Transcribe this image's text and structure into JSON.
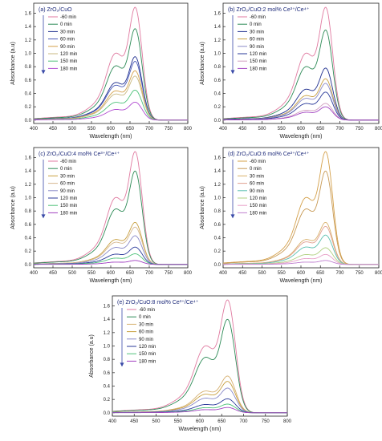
{
  "figure": {
    "wavelength_unit_label": "Wavelength (nm)",
    "absorbance_label": "Absorbance (a.u)"
  },
  "chart_data": [
    {
      "type": "line",
      "panel": "(a)",
      "title": "(a) ZrO₂/CuO",
      "xlabel": "Wavelength (nm)",
      "ylabel": "Absorbance (a.u)",
      "xlim": [
        400,
        800
      ],
      "ylim": [
        -0.05,
        1.75
      ],
      "xticks": [
        400,
        450,
        500,
        550,
        600,
        650,
        700,
        750,
        800
      ],
      "yticks": [
        0.0,
        0.2,
        0.4,
        0.6,
        0.8,
        1.0,
        1.2,
        1.4,
        1.6
      ],
      "legend_placement": "top-left",
      "legend_arrow": "down",
      "peak_wavelength": 663,
      "series": [
        {
          "name": "-60 min",
          "color": "#e07aa0",
          "peak": 1.69
        },
        {
          "name": "0 min",
          "color": "#2e8b57",
          "peak": 1.37
        },
        {
          "name": "30 min",
          "color": "#1f2f8f",
          "peak": 0.95
        },
        {
          "name": "60 min",
          "color": "#4a5ab8",
          "peak": 0.88
        },
        {
          "name": "90 min",
          "color": "#d4a04a",
          "peak": 0.74
        },
        {
          "name": "120 min",
          "color": "#c8b880",
          "peak": 0.66
        },
        {
          "name": "150 min",
          "color": "#4ec27a",
          "peak": 0.45
        },
        {
          "name": "180 min",
          "color": "#b04ad0",
          "peak": 0.27
        }
      ]
    },
    {
      "type": "line",
      "panel": "(b)",
      "title": "(b) ZrO₂/CuO:2 mol% Ce³⁺/Ce⁴⁺",
      "xlabel": "Wavelength (nm)",
      "ylabel": "Absorbance (a.u)",
      "xlim": [
        400,
        800
      ],
      "ylim": [
        -0.05,
        1.75
      ],
      "xticks": [
        400,
        450,
        500,
        550,
        600,
        650,
        700,
        750,
        800
      ],
      "yticks": [
        0.0,
        0.2,
        0.4,
        0.6,
        0.8,
        1.0,
        1.2,
        1.4,
        1.6
      ],
      "legend_placement": "top-left",
      "legend_arrow": "down",
      "peak_wavelength": 663,
      "series": [
        {
          "name": "-60 min",
          "color": "#e07aa0",
          "peak": 1.69
        },
        {
          "name": "0 min",
          "color": "#2e8b57",
          "peak": 1.35
        },
        {
          "name": "30 min",
          "color": "#1f2f8f",
          "peak": 0.78
        },
        {
          "name": "60 min",
          "color": "#c8a040",
          "peak": 0.62
        },
        {
          "name": "90 min",
          "color": "#8a8ac8",
          "peak": 0.55
        },
        {
          "name": "120 min",
          "color": "#2a3a9a",
          "peak": 0.42
        },
        {
          "name": "150 min",
          "color": "#d0a0c0",
          "peak": 0.25
        },
        {
          "name": "180 min",
          "color": "#a040c0",
          "peak": 0.2
        }
      ]
    },
    {
      "type": "line",
      "panel": "(c)",
      "title": "(c) ZrO₂/CuO:4 mol% Ce³⁺/Ce⁴⁺",
      "xlabel": "Wavelength (nm)",
      "ylabel": "Absorbance (a.u)",
      "xlim": [
        400,
        800
      ],
      "ylim": [
        -0.05,
        1.75
      ],
      "xticks": [
        400,
        450,
        500,
        550,
        600,
        650,
        700,
        750,
        800
      ],
      "yticks": [
        0.0,
        0.2,
        0.4,
        0.6,
        0.8,
        1.0,
        1.2,
        1.4,
        1.6
      ],
      "legend_placement": "top-left",
      "legend_arrow": "down",
      "peak_wavelength": 663,
      "series": [
        {
          "name": "-60 min",
          "color": "#e07aa0",
          "peak": 1.69
        },
        {
          "name": "0 min",
          "color": "#2e8b57",
          "peak": 1.4
        },
        {
          "name": "30 min",
          "color": "#c8a040",
          "peak": 0.63
        },
        {
          "name": "60 min",
          "color": "#d6b890",
          "peak": 0.56
        },
        {
          "name": "90 min",
          "color": "#8a8ac8",
          "peak": 0.43
        },
        {
          "name": "120 min",
          "color": "#2a3a9a",
          "peak": 0.26
        },
        {
          "name": "150 min",
          "color": "#4ec27a",
          "peak": 0.16
        },
        {
          "name": "180 min",
          "color": "#a040c0",
          "peak": 0.06
        }
      ]
    },
    {
      "type": "line",
      "panel": "(d)",
      "title": "(d) ZrO₂/CuO:6 mol% Ce³⁺/Ce⁴⁺",
      "xlabel": "Wavelength (nm)",
      "ylabel": "Absorbance (a.u)",
      "xlim": [
        400,
        800
      ],
      "ylim": [
        -0.05,
        1.75
      ],
      "xticks": [
        400,
        450,
        500,
        550,
        600,
        650,
        700,
        750,
        800
      ],
      "yticks": [
        0.0,
        0.2,
        0.4,
        0.6,
        0.8,
        1.0,
        1.2,
        1.4,
        1.6
      ],
      "legend_placement": "top-left",
      "legend_arrow": "down",
      "peak_wavelength": 663,
      "series": [
        {
          "name": "-60 min",
          "color": "#d4a04a",
          "peak": 1.69
        },
        {
          "name": "0 min",
          "color": "#c89a55",
          "peak": 1.4
        },
        {
          "name": "30 min",
          "color": "#d8b06a",
          "peak": 0.63
        },
        {
          "name": "60 min",
          "color": "#e0a090",
          "peak": 0.57
        },
        {
          "name": "90 min",
          "color": "#5ac0b0",
          "peak": 0.44
        },
        {
          "name": "120 min",
          "color": "#b0d080",
          "peak": 0.25
        },
        {
          "name": "150 min",
          "color": "#e8a0c8",
          "peak": 0.15
        },
        {
          "name": "180 min",
          "color": "#c080d0",
          "peak": 0.06
        }
      ]
    },
    {
      "type": "line",
      "panel": "(e)",
      "title": "(e) ZrO₂/CuO:8 mol% Ce³⁺/Ce⁴⁺",
      "xlabel": "Wavelength (nm)",
      "ylabel": "Absorbance (a.u)",
      "xlim": [
        400,
        800
      ],
      "ylim": [
        -0.05,
        1.75
      ],
      "xticks": [
        400,
        450,
        500,
        550,
        600,
        650,
        700,
        750,
        800
      ],
      "yticks": [
        0.0,
        0.2,
        0.4,
        0.6,
        0.8,
        1.0,
        1.2,
        1.4,
        1.6
      ],
      "legend_placement": "top-left",
      "legend_arrow": "down",
      "peak_wavelength": 663,
      "series": [
        {
          "name": "-60 min",
          "color": "#e07aa0",
          "peak": 1.69
        },
        {
          "name": "0 min",
          "color": "#2e8b57",
          "peak": 1.4
        },
        {
          "name": "30 min",
          "color": "#d6b070",
          "peak": 0.55
        },
        {
          "name": "60 min",
          "color": "#c8a040",
          "peak": 0.47
        },
        {
          "name": "90 min",
          "color": "#8a8ac8",
          "peak": 0.37
        },
        {
          "name": "120 min",
          "color": "#2a3a9a",
          "peak": 0.21
        },
        {
          "name": "150 min",
          "color": "#4ec27a",
          "peak": 0.13
        },
        {
          "name": "180 min",
          "color": "#a040c0",
          "peak": 0.08
        }
      ]
    }
  ]
}
